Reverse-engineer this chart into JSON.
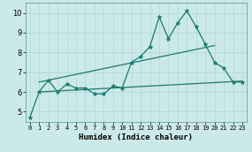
{
  "xlabel": "Humidex (Indice chaleur)",
  "x": [
    0,
    1,
    2,
    3,
    4,
    5,
    6,
    7,
    8,
    9,
    10,
    11,
    12,
    13,
    14,
    15,
    16,
    17,
    18,
    19,
    20,
    21,
    22,
    23
  ],
  "y_main": [
    4.7,
    6.0,
    6.6,
    6.0,
    6.4,
    6.2,
    6.2,
    5.9,
    5.9,
    6.3,
    6.2,
    7.5,
    7.8,
    8.3,
    9.8,
    8.7,
    9.5,
    10.1,
    9.3,
    8.4,
    7.5,
    7.2,
    6.5,
    6.5
  ],
  "trend1_x": [
    1,
    20
  ],
  "trend1_y": [
    6.5,
    8.35
  ],
  "trend2_x": [
    1,
    23
  ],
  "trend2_y": [
    6.0,
    6.55
  ],
  "background_color": "#cce9e9",
  "line_color": "#1a7a6e",
  "grid_color": "#b0d5d5",
  "ylim": [
    4.5,
    10.5
  ],
  "xlim": [
    -0.5,
    23.5
  ],
  "yticks": [
    5,
    6,
    7,
    8,
    9,
    10
  ],
  "xtick_fontsize": 5,
  "ytick_fontsize": 6,
  "xlabel_fontsize": 6.5
}
